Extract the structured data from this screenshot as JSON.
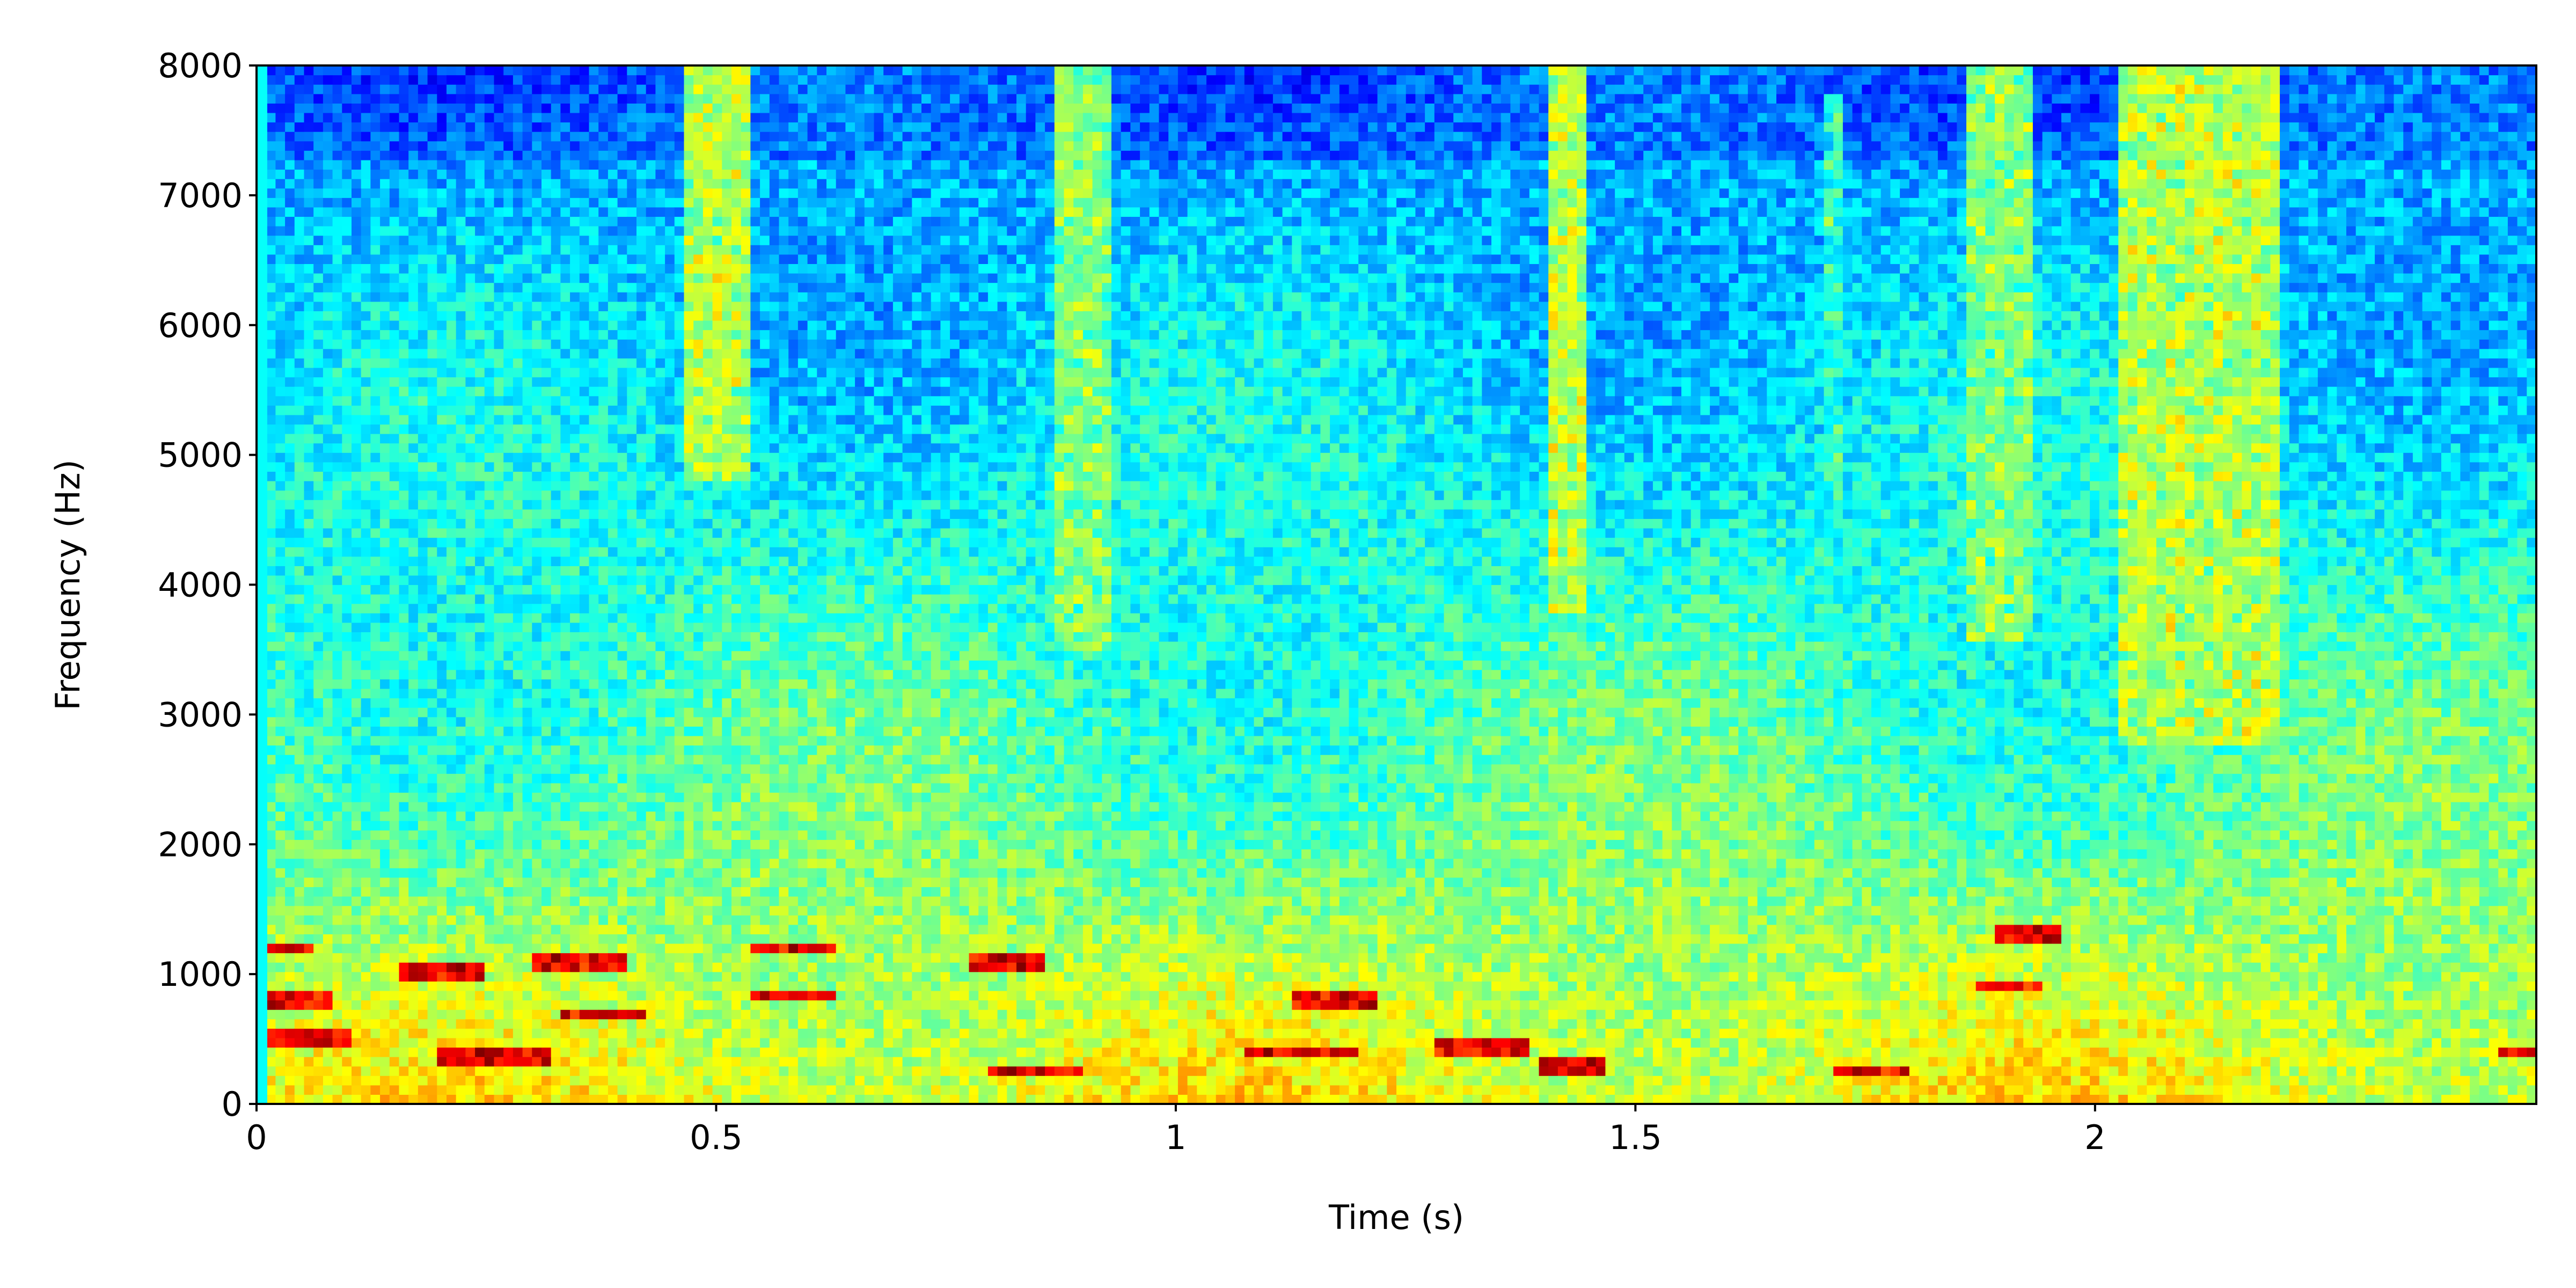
{
  "chart_data": {
    "type": "heatmap",
    "title": "",
    "xlabel": "Time (s)",
    "ylabel": "Frequency (Hz)",
    "xlim": [
      0,
      2.48
    ],
    "ylim": [
      0,
      8000
    ],
    "x_ticks": [
      {
        "value": 0,
        "label": "0"
      },
      {
        "value": 0.5,
        "label": "0.5"
      },
      {
        "value": 1,
        "label": "1"
      },
      {
        "value": 1.5,
        "label": "1.5"
      },
      {
        "value": 2,
        "label": "2"
      }
    ],
    "y_ticks": [
      {
        "value": 0,
        "label": "0"
      },
      {
        "value": 1000,
        "label": "1000"
      },
      {
        "value": 2000,
        "label": "2000"
      },
      {
        "value": 3000,
        "label": "3000"
      },
      {
        "value": 4000,
        "label": "4000"
      },
      {
        "value": 5000,
        "label": "5000"
      },
      {
        "value": 6000,
        "label": "6000"
      },
      {
        "value": 7000,
        "label": "7000"
      },
      {
        "value": 8000,
        "label": "8000"
      }
    ],
    "colormap": "jet",
    "grid": false,
    "legend": "none",
    "features": {
      "high_frequency_bursts": [
        {
          "time_start": 0.47,
          "time_end": 0.54,
          "freq_low": 4800,
          "freq_high": 8000,
          "intensity": 0.55
        },
        {
          "time_start": 0.87,
          "time_end": 0.93,
          "freq_low": 3500,
          "freq_high": 8000,
          "intensity": 0.5
        },
        {
          "time_start": 1.41,
          "time_end": 1.45,
          "freq_low": 3800,
          "freq_high": 8000,
          "intensity": 0.55
        },
        {
          "time_start": 1.7,
          "time_end": 1.73,
          "freq_low": 4500,
          "freq_high": 7800,
          "intensity": 0.42
        },
        {
          "time_start": 1.86,
          "time_end": 1.93,
          "freq_low": 3600,
          "freq_high": 8000,
          "intensity": 0.5
        },
        {
          "time_start": 2.03,
          "time_end": 2.2,
          "freq_low": 2800,
          "freq_high": 8000,
          "intensity": 0.55
        }
      ],
      "low_frequency_energy_band_hz": [
        0,
        2000
      ],
      "harmonic_streaks": [
        {
          "time_start": 0.0,
          "time_end": 0.06,
          "freq": 1200
        },
        {
          "time_start": 0.0,
          "time_end": 0.08,
          "freq": 800
        },
        {
          "time_start": 0.0,
          "time_end": 0.1,
          "freq": 500
        },
        {
          "time_start": 0.15,
          "time_end": 0.25,
          "freq": 1000
        },
        {
          "time_start": 0.2,
          "time_end": 0.32,
          "freq": 350
        },
        {
          "time_start": 0.3,
          "time_end": 0.4,
          "freq": 1100
        },
        {
          "time_start": 0.33,
          "time_end": 0.42,
          "freq": 700
        },
        {
          "time_start": 0.54,
          "time_end": 0.63,
          "freq": 1200
        },
        {
          "time_start": 0.54,
          "time_end": 0.63,
          "freq": 850
        },
        {
          "time_start": 0.78,
          "time_end": 0.86,
          "freq": 1100
        },
        {
          "time_start": 0.8,
          "time_end": 0.9,
          "freq": 250
        },
        {
          "time_start": 1.07,
          "time_end": 1.2,
          "freq": 400
        },
        {
          "time_start": 1.13,
          "time_end": 1.22,
          "freq": 800
        },
        {
          "time_start": 1.28,
          "time_end": 1.38,
          "freq": 450
        },
        {
          "time_start": 1.4,
          "time_end": 1.47,
          "freq": 300
        },
        {
          "time_start": 1.72,
          "time_end": 1.8,
          "freq": 250
        },
        {
          "time_start": 1.87,
          "time_end": 1.94,
          "freq": 900
        },
        {
          "time_start": 1.89,
          "time_end": 1.96,
          "freq": 1300
        },
        {
          "time_start": 2.44,
          "time_end": 2.48,
          "freq": 400
        }
      ]
    }
  }
}
